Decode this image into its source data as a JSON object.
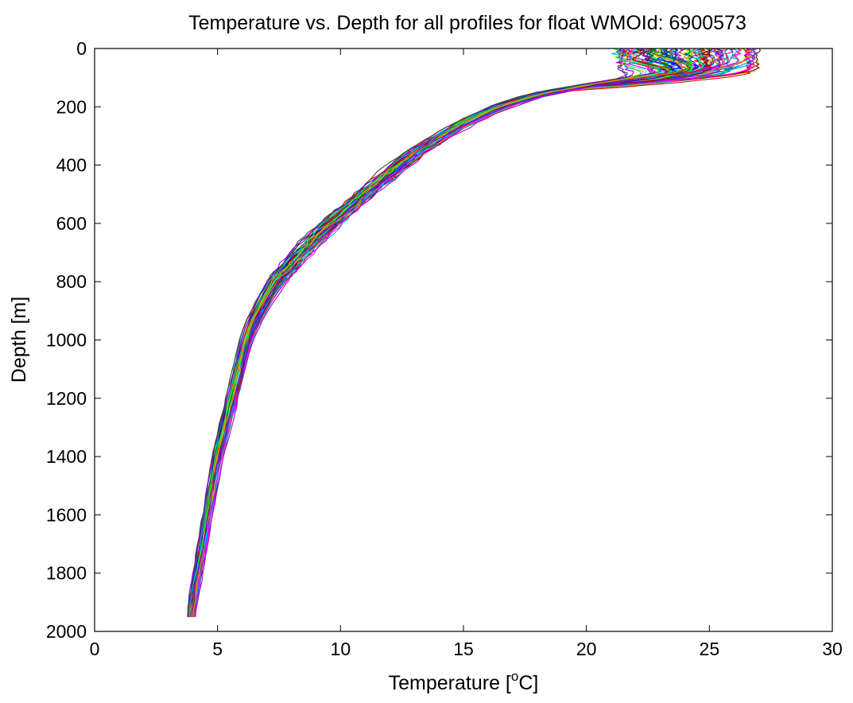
{
  "chart_data": {
    "type": "line",
    "title": "Temperature vs. Depth for all profiles for float WMOId: 6900573",
    "xlabel_prefix": "Temperature [",
    "xlabel_superscript": "o",
    "xlabel_suffix": "C]",
    "ylabel": "Depth [m]",
    "xlim": [
      0,
      30
    ],
    "ylim": [
      0,
      2000
    ],
    "y_reversed": true,
    "grid": true,
    "legend": "none",
    "xticks": [
      0,
      5,
      10,
      15,
      20,
      25,
      30
    ],
    "yticks": [
      0,
      200,
      400,
      600,
      800,
      1000,
      1200,
      1400,
      1600,
      1800,
      2000
    ],
    "profile_count_estimate": 100,
    "mean_profile": {
      "depth": [
        0,
        50,
        80,
        100,
        130,
        160,
        200,
        250,
        300,
        350,
        400,
        450,
        500,
        550,
        600,
        650,
        700,
        750,
        800,
        850,
        900,
        950,
        1000,
        1050,
        1100,
        1150,
        1200,
        1300,
        1400,
        1500,
        1600,
        1700,
        1800,
        1900,
        1970
      ],
      "temperature": [
        25.8,
        25.4,
        24.0,
        22.0,
        19.8,
        18.0,
        16.5,
        15.2,
        14.2,
        13.2,
        12.4,
        11.7,
        11.0,
        10.3,
        9.6,
        9.0,
        8.4,
        7.9,
        7.4,
        7.0,
        6.7,
        6.4,
        6.2,
        6.05,
        5.9,
        5.75,
        5.6,
        5.3,
        5.0,
        4.8,
        4.6,
        4.4,
        4.2,
        4.0,
        3.85
      ]
    },
    "series_colors": [
      "#0000ff",
      "#008000",
      "#ff0000",
      "#00bfbf",
      "#bf00bf",
      "#bfbf00",
      "#404040",
      "#00ff00",
      "#ff8000",
      "#8000ff",
      "#0080ff",
      "#ff00ff",
      "#008080",
      "#800000",
      "#00ffff"
    ]
  }
}
